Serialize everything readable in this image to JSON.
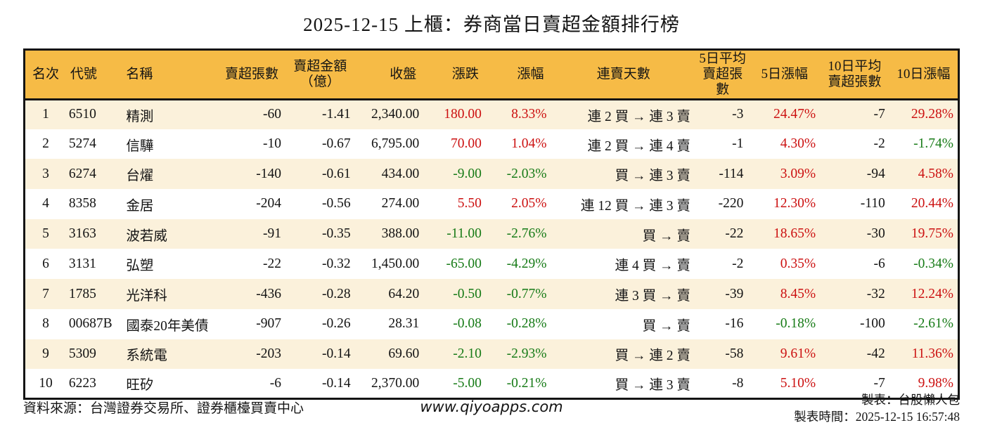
{
  "title": "2025-12-15 上櫃：券商當日賣超金額排行榜",
  "colors": {
    "header_bg": "#F6BB46",
    "row_alt_bg": "#FBF1DB",
    "row_bg": "#FFFFFF",
    "up_red": "#CC1111",
    "down_green": "#177B17",
    "text": "#141414",
    "border": "#141414"
  },
  "column_meta": [
    {
      "key": "rank",
      "align": "ac",
      "colored": false
    },
    {
      "key": "code",
      "align": "al",
      "colored": false
    },
    {
      "key": "name",
      "align": "al",
      "colored": false
    },
    {
      "key": "sell_volume",
      "align": "ar",
      "colored": false
    },
    {
      "key": "sell_amount",
      "align": "ar",
      "colored": false,
      "header_center": true
    },
    {
      "key": "close",
      "align": "ar",
      "colored": false
    },
    {
      "key": "change",
      "align": "ar",
      "colored": true
    },
    {
      "key": "change_pct",
      "align": "ar",
      "colored": true
    },
    {
      "key": "streak",
      "align": "ar",
      "colored": false,
      "header_center": true
    },
    {
      "key": "avg5",
      "align": "ar",
      "colored": false,
      "header_center": true
    },
    {
      "key": "pct5",
      "align": "ar",
      "colored": true,
      "header_center": true
    },
    {
      "key": "avg10",
      "align": "ar",
      "colored": false,
      "header_center": true
    },
    {
      "key": "pct10",
      "align": "ar",
      "colored": true,
      "header_center": true
    }
  ],
  "chart_data": {
    "type": "table",
    "title": "2025-12-15 上櫃：券商當日賣超金額排行榜",
    "columns": [
      "名次",
      "代號",
      "名稱",
      "賣超張數",
      "賣超金額\n（億）",
      "收盤",
      "漲跌",
      "漲幅",
      "連賣天數",
      "5日平均\n賣超張數",
      "5日漲幅",
      "10日平均\n賣超張數",
      "10日漲幅"
    ],
    "rows": [
      [
        "1",
        "6510",
        "精測",
        "-60",
        "-1.41",
        "2,340.00",
        "180.00",
        "8.33%",
        "連 2 買 → 連 3 賣",
        "-3",
        "24.47%",
        "-7",
        "29.28%"
      ],
      [
        "2",
        "5274",
        "信驊",
        "-10",
        "-0.67",
        "6,795.00",
        "70.00",
        "1.04%",
        "連 2 買 → 連 4 賣",
        "-1",
        "4.30%",
        "-2",
        "-1.74%"
      ],
      [
        "3",
        "6274",
        "台燿",
        "-140",
        "-0.61",
        "434.00",
        "-9.00",
        "-2.03%",
        "買 → 連 3 賣",
        "-114",
        "3.09%",
        "-94",
        "4.58%"
      ],
      [
        "4",
        "8358",
        "金居",
        "-204",
        "-0.56",
        "274.00",
        "5.50",
        "2.05%",
        "連 12 買 → 連 3 賣",
        "-220",
        "12.30%",
        "-110",
        "20.44%"
      ],
      [
        "5",
        "3163",
        "波若威",
        "-91",
        "-0.35",
        "388.00",
        "-11.00",
        "-2.76%",
        "買 → 賣",
        "-22",
        "18.65%",
        "-30",
        "19.75%"
      ],
      [
        "6",
        "3131",
        "弘塑",
        "-22",
        "-0.32",
        "1,450.00",
        "-65.00",
        "-4.29%",
        "連 4 買 → 賣",
        "-2",
        "0.35%",
        "-6",
        "-0.34%"
      ],
      [
        "7",
        "1785",
        "光洋科",
        "-436",
        "-0.28",
        "64.20",
        "-0.50",
        "-0.77%",
        "連 3 買 → 賣",
        "-39",
        "8.45%",
        "-32",
        "12.24%"
      ],
      [
        "8",
        "00687B",
        "國泰20年美債",
        "-907",
        "-0.26",
        "28.31",
        "-0.08",
        "-0.28%",
        "買 → 賣",
        "-16",
        "-0.18%",
        "-100",
        "-2.61%"
      ],
      [
        "9",
        "5309",
        "系統電",
        "-203",
        "-0.14",
        "69.60",
        "-2.10",
        "-2.93%",
        "買 → 連 2 賣",
        "-58",
        "9.61%",
        "-42",
        "11.36%"
      ],
      [
        "10",
        "6223",
        "旺矽",
        "-6",
        "-0.14",
        "2,370.00",
        "-5.00",
        "-0.21%",
        "買 → 連 3 賣",
        "-8",
        "5.10%",
        "-7",
        "9.98%"
      ]
    ]
  },
  "footer": {
    "source": "資料來源：台灣證券交易所、證券櫃檯買賣中心",
    "website": "www.qiyoapps.com",
    "maker": "製表：台股懶人包",
    "made_time": "製表時間：2025-12-15 16:57:48"
  }
}
